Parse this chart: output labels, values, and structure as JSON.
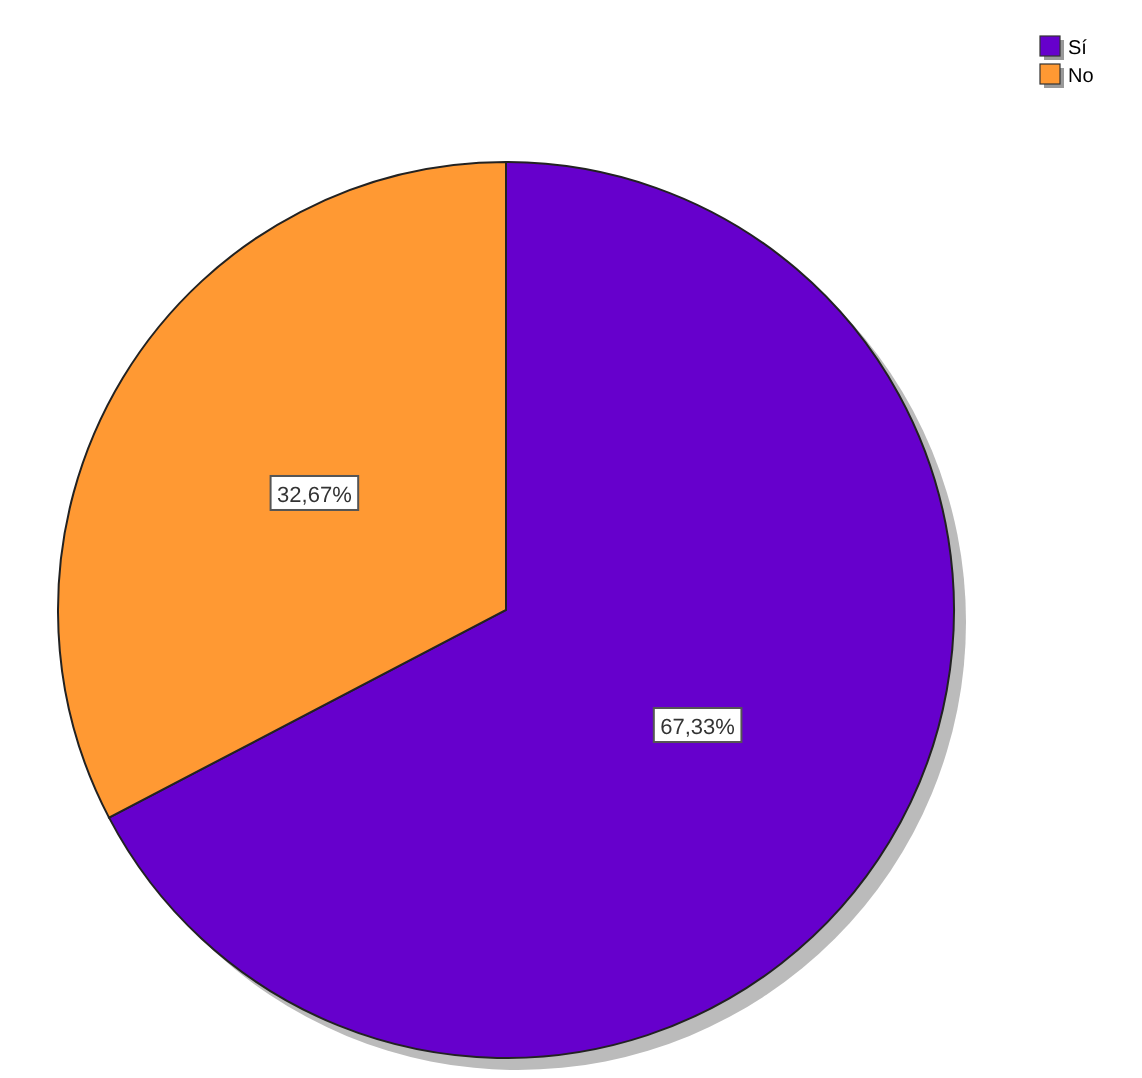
{
  "chart_data": {
    "type": "pie",
    "categories": [
      "Sí",
      "No"
    ],
    "values": [
      67.33,
      32.67
    ],
    "colors": [
      "#6600cc",
      "#ff9933"
    ],
    "value_labels": [
      "67,33%",
      "32,67%"
    ],
    "legend": "top right"
  }
}
